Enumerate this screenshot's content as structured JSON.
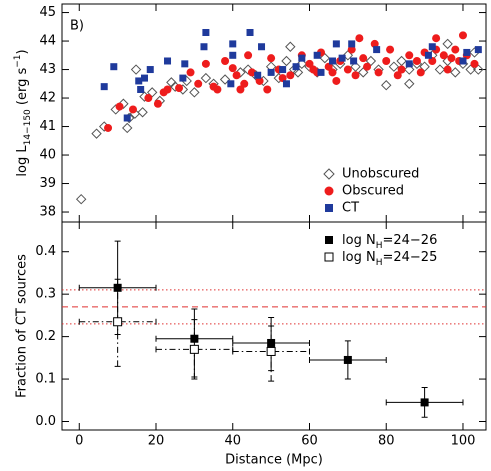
{
  "chart_data": [
    {
      "type": "scatter",
      "annotation": "B)",
      "ylabel_parts": [
        {
          "text": "log L"
        },
        {
          "text": "14−150",
          "sub": true
        },
        {
          "text": "  (erg s"
        },
        {
          "text": "−1",
          "sup": true
        },
        {
          "text": ")"
        }
      ],
      "xlim": [
        -4.5,
        106
      ],
      "xticks": [
        0,
        20,
        40,
        60,
        80,
        100
      ],
      "show_xtick_labels": false,
      "ylim": [
        37.65,
        45.3
      ],
      "yticks": [
        38,
        39,
        40,
        41,
        42,
        43,
        44,
        45
      ],
      "legend": "lower right",
      "series": [
        {
          "name": "Unobscured",
          "marker": "open-diamond",
          "color": "#555555",
          "x": [
            0.5,
            4.5,
            6.5,
            9.5,
            11.5,
            12.5,
            13,
            14.5,
            14.8,
            16.5,
            17,
            19,
            21,
            24,
            25,
            27,
            28,
            30,
            33,
            35,
            38,
            42,
            44,
            46,
            48,
            50,
            52,
            54,
            56,
            58,
            60,
            62,
            64,
            66,
            68,
            70,
            72,
            74,
            76,
            78,
            80,
            82,
            84,
            86,
            88,
            90,
            92,
            94,
            96,
            98,
            100,
            102,
            103,
            104,
            55,
            57,
            96,
            86
          ],
          "values": [
            38.45,
            40.75,
            41.0,
            41.6,
            41.8,
            40.95,
            41.3,
            41.45,
            43.0,
            41.5,
            42.05,
            42.2,
            41.9,
            42.55,
            42.4,
            42.3,
            42.6,
            42.2,
            42.7,
            42.5,
            42.65,
            42.9,
            43.0,
            42.8,
            42.6,
            43.1,
            42.7,
            43.3,
            43.0,
            43.2,
            43.1,
            42.9,
            43.4,
            43.0,
            43.2,
            43.5,
            43.1,
            42.9,
            43.3,
            43.0,
            42.45,
            43.1,
            43.3,
            43.0,
            43.2,
            43.1,
            43.5,
            43.0,
            43.3,
            42.9,
            43.2,
            43.0,
            43.6,
            43.0,
            43.8,
            42.9,
            43.9,
            42.5
          ]
        },
        {
          "name": "Obscured",
          "marker": "filled-circle",
          "color": "#ee1c1c",
          "x": [
            7.5,
            10.5,
            14,
            18,
            20.5,
            22,
            23,
            26,
            29,
            31,
            33,
            35,
            36,
            38,
            40,
            41,
            42,
            43,
            44,
            45,
            47,
            49,
            50,
            52,
            53,
            55,
            58,
            60,
            61,
            62,
            63,
            65,
            66,
            67,
            68,
            70,
            71,
            72,
            74,
            75,
            77,
            78,
            80,
            81,
            83,
            84,
            86,
            88,
            89,
            90,
            92,
            93,
            95,
            96,
            97,
            98,
            99,
            100,
            101,
            103,
            93,
            73
          ],
          "values": [
            40.95,
            41.7,
            41.6,
            42.0,
            41.8,
            42.2,
            42.3,
            42.35,
            42.9,
            42.5,
            43.2,
            42.4,
            42.3,
            43.3,
            43.05,
            42.8,
            42.3,
            42.5,
            43.5,
            42.9,
            42.6,
            42.3,
            43.4,
            43.0,
            42.7,
            42.8,
            43.5,
            43.2,
            43.0,
            42.9,
            43.6,
            43.1,
            42.9,
            42.6,
            43.3,
            43.0,
            43.7,
            42.8,
            43.4,
            43.1,
            43.9,
            42.9,
            43.3,
            43.7,
            42.8,
            43.0,
            43.5,
            43.3,
            42.9,
            43.6,
            43.3,
            43.7,
            43.5,
            43.0,
            43.4,
            43.7,
            43.3,
            44.2,
            43.5,
            43.2,
            44.1,
            44.1
          ]
        },
        {
          "name": "CT",
          "marker": "filled-square",
          "color": "#1f3a9c",
          "x": [
            6.5,
            9,
            12.5,
            15.5,
            17,
            18.5,
            16,
            23,
            27,
            27.5,
            32.5,
            33,
            39.5,
            40,
            44.5,
            40,
            46.5,
            47.5,
            50,
            53,
            54,
            56.5,
            58,
            62,
            63,
            66,
            67,
            68.5,
            71,
            71.5,
            77.5,
            86,
            91,
            92,
            100,
            101,
            104
          ],
          "values": [
            42.4,
            43.1,
            41.3,
            42.6,
            42.7,
            43.0,
            42.3,
            43.3,
            42.7,
            43.2,
            43.8,
            44.3,
            42.5,
            43.5,
            44.3,
            43.9,
            42.8,
            43.8,
            42.9,
            43.0,
            42.5,
            43.1,
            43.4,
            43.5,
            42.9,
            43.3,
            43.9,
            43.4,
            43.9,
            43.3,
            43.7,
            43.2,
            43.5,
            43.8,
            43.3,
            43.6,
            43.7
          ]
        }
      ]
    },
    {
      "type": "errorbar",
      "xlabel": "Distance (Mpc)",
      "ylabel": "Fraction of CT sources",
      "xlim": [
        -4.5,
        106
      ],
      "xticks": [
        0,
        20,
        40,
        60,
        80,
        100
      ],
      "show_xtick_labels": true,
      "ylim": [
        -0.02,
        0.47
      ],
      "yticks": [
        {
          "value": 0,
          "label": "0.0"
        },
        0.1,
        0.2,
        0.3,
        0.4
      ],
      "legend": "upper right",
      "reference_lines": [
        {
          "value": 0.27,
          "color": "#e03030",
          "linestyle": "dashed"
        },
        {
          "value": 0.31,
          "color": "#e03030",
          "linestyle": "dotted"
        },
        {
          "value": 0.23,
          "color": "#e03030",
          "linestyle": "dotted"
        }
      ],
      "series": [
        {
          "name_parts": [
            {
              "text": "log N"
            },
            {
              "text": "H",
              "sub": true
            },
            {
              "text": "=24−26"
            }
          ],
          "marker": "filled-square",
          "linestyle": "solid",
          "color": "#000000",
          "x": [
            10,
            30,
            50,
            70,
            90
          ],
          "xerr": [
            10,
            10,
            10,
            10,
            10
          ],
          "values": [
            0.315,
            0.195,
            0.185,
            0.145,
            0.045
          ],
          "lower": [
            0.205,
            0.105,
            0.12,
            0.1,
            0.01
          ],
          "upper": [
            0.425,
            0.265,
            0.245,
            0.19,
            0.08
          ]
        },
        {
          "name_parts": [
            {
              "text": "log N"
            },
            {
              "text": "H",
              "sub": true
            },
            {
              "text": "=24−25"
            }
          ],
          "marker": "open-square",
          "linestyle": "dashdot",
          "color": "#000000",
          "x": [
            10,
            30,
            50
          ],
          "xerr": [
            10,
            10,
            10
          ],
          "values": [
            0.235,
            0.17,
            0.165
          ],
          "lower": [
            0.13,
            0.1,
            0.095
          ],
          "upper": [
            0.335,
            0.24,
            0.225
          ]
        }
      ]
    }
  ]
}
